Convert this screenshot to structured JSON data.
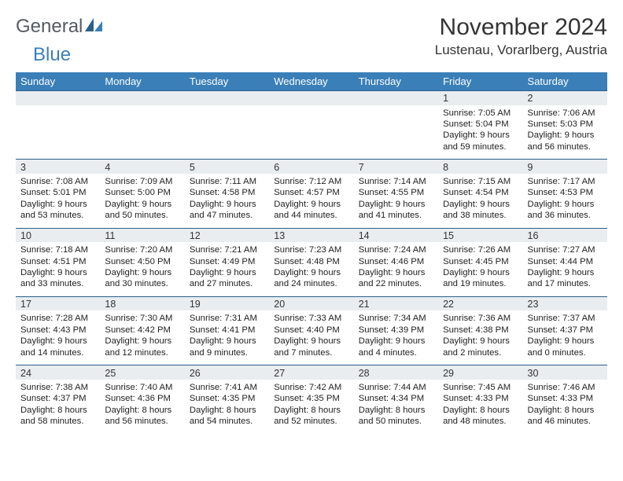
{
  "brand": {
    "general": "General",
    "blue": "Blue"
  },
  "header": {
    "title": "November 2024",
    "location": "Lustenau, Vorarlberg, Austria"
  },
  "colors": {
    "header_bg": "#3a7fb8",
    "daynum_bg": "#e9edf0",
    "row_border": "#2b5f8a"
  },
  "weekdays": [
    "Sunday",
    "Monday",
    "Tuesday",
    "Wednesday",
    "Thursday",
    "Friday",
    "Saturday"
  ],
  "weeks": [
    {
      "nums": [
        "",
        "",
        "",
        "",
        "",
        "1",
        "2"
      ],
      "cells": [
        "",
        "",
        "",
        "",
        "",
        "Sunrise: 7:05 AM\nSunset: 5:04 PM\nDaylight: 9 hours and 59 minutes.",
        "Sunrise: 7:06 AM\nSunset: 5:03 PM\nDaylight: 9 hours and 56 minutes."
      ]
    },
    {
      "nums": [
        "3",
        "4",
        "5",
        "6",
        "7",
        "8",
        "9"
      ],
      "cells": [
        "Sunrise: 7:08 AM\nSunset: 5:01 PM\nDaylight: 9 hours and 53 minutes.",
        "Sunrise: 7:09 AM\nSunset: 5:00 PM\nDaylight: 9 hours and 50 minutes.",
        "Sunrise: 7:11 AM\nSunset: 4:58 PM\nDaylight: 9 hours and 47 minutes.",
        "Sunrise: 7:12 AM\nSunset: 4:57 PM\nDaylight: 9 hours and 44 minutes.",
        "Sunrise: 7:14 AM\nSunset: 4:55 PM\nDaylight: 9 hours and 41 minutes.",
        "Sunrise: 7:15 AM\nSunset: 4:54 PM\nDaylight: 9 hours and 38 minutes.",
        "Sunrise: 7:17 AM\nSunset: 4:53 PM\nDaylight: 9 hours and 36 minutes."
      ]
    },
    {
      "nums": [
        "10",
        "11",
        "12",
        "13",
        "14",
        "15",
        "16"
      ],
      "cells": [
        "Sunrise: 7:18 AM\nSunset: 4:51 PM\nDaylight: 9 hours and 33 minutes.",
        "Sunrise: 7:20 AM\nSunset: 4:50 PM\nDaylight: 9 hours and 30 minutes.",
        "Sunrise: 7:21 AM\nSunset: 4:49 PM\nDaylight: 9 hours and 27 minutes.",
        "Sunrise: 7:23 AM\nSunset: 4:48 PM\nDaylight: 9 hours and 24 minutes.",
        "Sunrise: 7:24 AM\nSunset: 4:46 PM\nDaylight: 9 hours and 22 minutes.",
        "Sunrise: 7:26 AM\nSunset: 4:45 PM\nDaylight: 9 hours and 19 minutes.",
        "Sunrise: 7:27 AM\nSunset: 4:44 PM\nDaylight: 9 hours and 17 minutes."
      ]
    },
    {
      "nums": [
        "17",
        "18",
        "19",
        "20",
        "21",
        "22",
        "23"
      ],
      "cells": [
        "Sunrise: 7:28 AM\nSunset: 4:43 PM\nDaylight: 9 hours and 14 minutes.",
        "Sunrise: 7:30 AM\nSunset: 4:42 PM\nDaylight: 9 hours and 12 minutes.",
        "Sunrise: 7:31 AM\nSunset: 4:41 PM\nDaylight: 9 hours and 9 minutes.",
        "Sunrise: 7:33 AM\nSunset: 4:40 PM\nDaylight: 9 hours and 7 minutes.",
        "Sunrise: 7:34 AM\nSunset: 4:39 PM\nDaylight: 9 hours and 4 minutes.",
        "Sunrise: 7:36 AM\nSunset: 4:38 PM\nDaylight: 9 hours and 2 minutes.",
        "Sunrise: 7:37 AM\nSunset: 4:37 PM\nDaylight: 9 hours and 0 minutes."
      ]
    },
    {
      "nums": [
        "24",
        "25",
        "26",
        "27",
        "28",
        "29",
        "30"
      ],
      "cells": [
        "Sunrise: 7:38 AM\nSunset: 4:37 PM\nDaylight: 8 hours and 58 minutes.",
        "Sunrise: 7:40 AM\nSunset: 4:36 PM\nDaylight: 8 hours and 56 minutes.",
        "Sunrise: 7:41 AM\nSunset: 4:35 PM\nDaylight: 8 hours and 54 minutes.",
        "Sunrise: 7:42 AM\nSunset: 4:35 PM\nDaylight: 8 hours and 52 minutes.",
        "Sunrise: 7:44 AM\nSunset: 4:34 PM\nDaylight: 8 hours and 50 minutes.",
        "Sunrise: 7:45 AM\nSunset: 4:33 PM\nDaylight: 8 hours and 48 minutes.",
        "Sunrise: 7:46 AM\nSunset: 4:33 PM\nDaylight: 8 hours and 46 minutes."
      ]
    }
  ]
}
